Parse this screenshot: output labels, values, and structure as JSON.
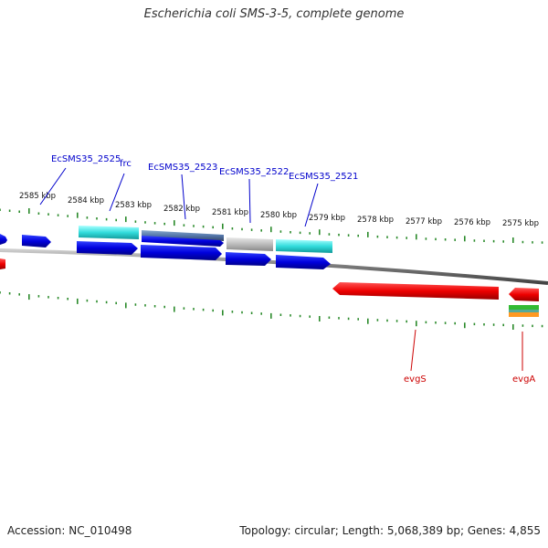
{
  "title": "Escherichia coli SMS-3-5, complete genome",
  "footer": {
    "accession": "Accession: NC_010498",
    "topology": "Topology: circular; Length: 5,068,389 bp; Genes: 4,855"
  },
  "colors": {
    "backbone": "#808080",
    "tick": "#2a8a2a",
    "forward_gene": "#0000dd",
    "reverse_gene": "#ee0000",
    "label_blue": "#0000cc",
    "label_red": "#cc0000",
    "cyan_feature": "#33dddd",
    "steel_feature": "#5577aa",
    "grey_feature": "#bbbbbb"
  },
  "scale_labels": [
    "2585 kbp",
    "2584 kbp",
    "2583 kbp",
    "2582 kbp",
    "2581 kbp",
    "2580 kbp",
    "2579 kbp",
    "2578 kbp",
    "2577 kbp",
    "2576 kbp",
    "2575 kbp"
  ],
  "forward_gene_labels": [
    "EcSMS35_2525",
    "frc",
    "EcSMS35_2523",
    "EcSMS35_2522",
    "EcSMS35_2521"
  ],
  "reverse_gene_labels": [
    "evgS",
    "evgA"
  ]
}
